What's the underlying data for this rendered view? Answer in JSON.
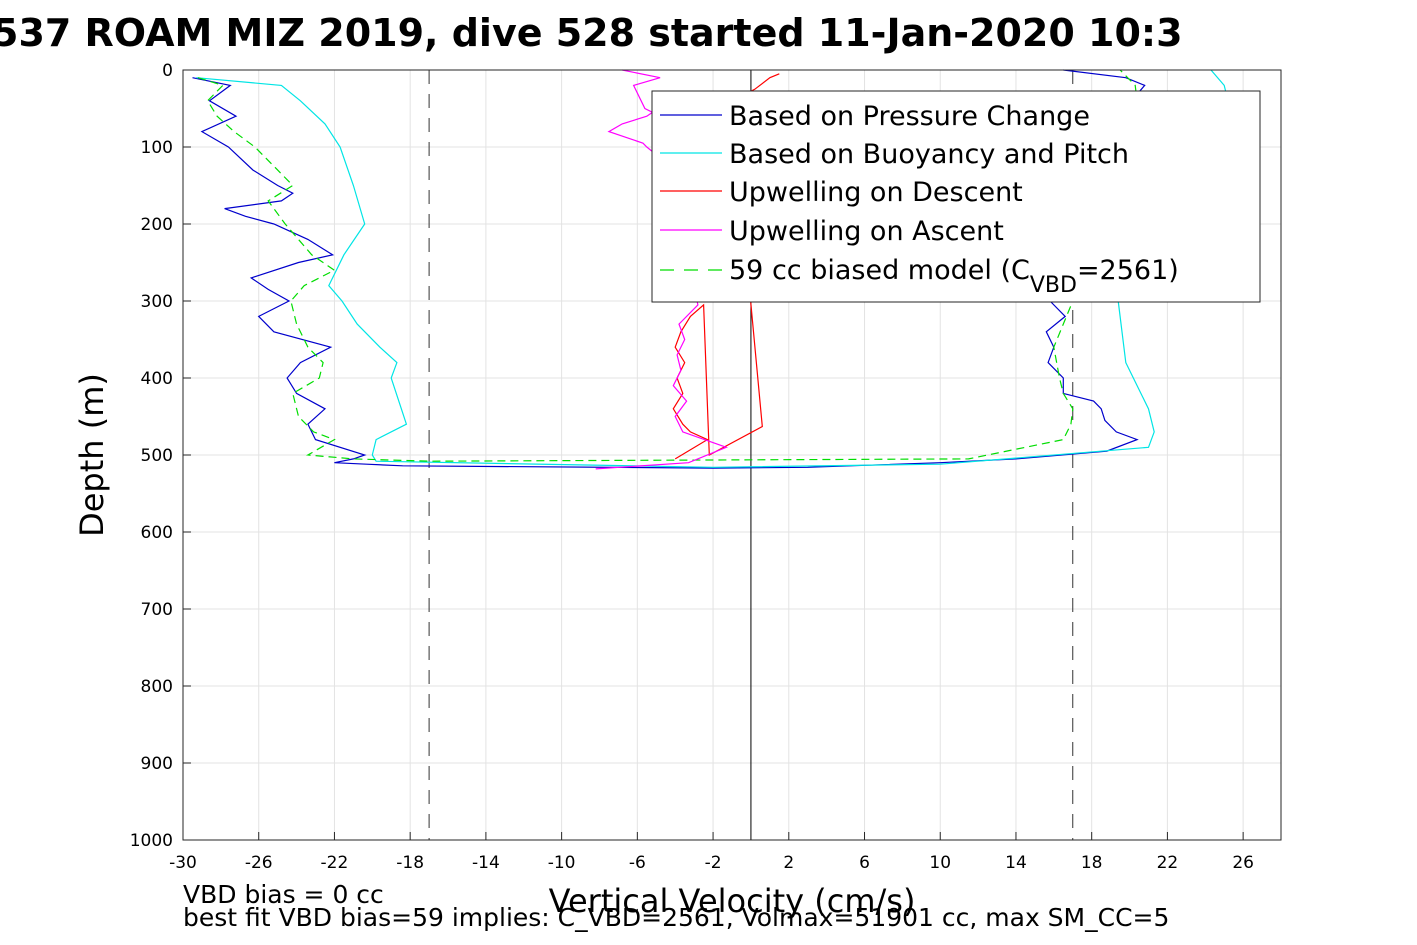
{
  "chart_data": {
    "type": "line",
    "title": "537 ROAM MIZ 2019, dive 528 started 11-Jan-2020 10:3",
    "xlabel": "Vertical Velocity (cm/s)",
    "ylabel": "Depth (m)",
    "xlim": [
      -30,
      28
    ],
    "ylim": [
      0,
      1000
    ],
    "y_reversed": true,
    "grid": true,
    "xticks": [
      -30,
      -26,
      -22,
      -18,
      -14,
      -10,
      -6,
      -2,
      2,
      6,
      10,
      14,
      18,
      22,
      26
    ],
    "yticks": [
      0,
      100,
      200,
      300,
      400,
      500,
      600,
      700,
      800,
      900,
      1000
    ],
    "legend_position": "top-right",
    "legend": [
      {
        "label": "Based on Pressure Change",
        "color": "#0000cc",
        "style": "solid"
      },
      {
        "label": "Based on Buoyancy and Pitch",
        "color": "#00e5e5",
        "style": "solid"
      },
      {
        "label": "Upwelling on Descent",
        "color": "#ff0000",
        "style": "solid"
      },
      {
        "label": "Upwelling on Ascent",
        "color": "#ff00ff",
        "style": "solid"
      },
      {
        "label_main": "59 cc biased model (C",
        "label_sub": "VBD",
        "label_end": "=2561)",
        "color": "#00dd00",
        "style": "dashed"
      }
    ],
    "reference_lines": {
      "zero_line_x": 0,
      "dashed_lines_x": [
        -17,
        17
      ]
    },
    "series": [
      {
        "color": "#0000cc",
        "x": [
          -29.5,
          -27.5,
          -28.6,
          -27.2,
          -29.0,
          -27.6,
          -26.3,
          -25.0,
          -24.2,
          -24.8,
          -27.8,
          -26.7,
          -25.2,
          -23.4,
          -22.1,
          -23.9,
          -26.4,
          -25.5,
          -24.4,
          -26.0,
          -25.2,
          -22.2,
          -23.8,
          -24.5,
          -24.0,
          -22.5,
          -23.4,
          -23.0,
          -20.4,
          -21.0,
          -22.0,
          -20.3,
          -18.4,
          -2.0,
          3.0,
          10.0,
          14.0,
          18.8,
          20.4,
          19.3,
          18.7,
          18.5,
          18.1,
          16.5,
          16.5,
          15.7,
          16.0,
          15.6,
          16.6,
          15.8,
          16.2,
          16.8,
          17.2,
          19.5,
          20.1,
          20.8,
          19.8,
          16.5
        ],
        "y": [
          10,
          20,
          40,
          60,
          80,
          100,
          130,
          150,
          160,
          170,
          180,
          190,
          200,
          220,
          240,
          250,
          270,
          285,
          300,
          320,
          340,
          360,
          380,
          400,
          420,
          440,
          460,
          480,
          500,
          505,
          510,
          512,
          514,
          517,
          516,
          510,
          505,
          495,
          480,
          470,
          455,
          440,
          430,
          420,
          400,
          380,
          360,
          340,
          320,
          300,
          260,
          200,
          100,
          60,
          40,
          20,
          10,
          0
        ]
      },
      {
        "color": "#00e5e5",
        "x": [
          -29.3,
          -24.8,
          -23.8,
          -22.5,
          -21.7,
          -21.0,
          -20.4,
          -21.5,
          -22.3,
          -21.6,
          -20.8,
          -19.6,
          -18.7,
          -19.0,
          -18.2,
          -19.8,
          -20.0,
          -19.8,
          -2.0,
          10.0,
          21.0,
          21.3,
          21.0,
          20.6,
          19.8,
          19.6,
          19.4,
          20.5,
          22.5,
          25.4,
          25.0,
          24.3
        ],
        "y": [
          10,
          20,
          40,
          70,
          100,
          150,
          200,
          240,
          280,
          300,
          330,
          360,
          380,
          400,
          460,
          480,
          500,
          508,
          516,
          512,
          490,
          470,
          440,
          420,
          380,
          340,
          300,
          200,
          100,
          60,
          20,
          0
        ]
      },
      {
        "color": "#00dd00",
        "dashed": true,
        "x": [
          -29.2,
          -27.9,
          -28.7,
          -28.2,
          -27.3,
          -26.2,
          -25.0,
          -24.2,
          -25.5,
          -24.6,
          -23.2,
          -22.0,
          -23.6,
          -24.3,
          -24.0,
          -23.4,
          -22.6,
          -22.8,
          -24.2,
          -23.9,
          -23.1,
          -22.0,
          -23.4,
          -21.0,
          -17.0,
          11.5,
          12.5,
          16.5,
          16.9,
          17.0,
          16.5,
          16.3,
          16.0,
          17.0,
          19.7,
          20.5,
          20.3,
          19.5
        ],
        "y": [
          10,
          20,
          40,
          60,
          80,
          100,
          130,
          150,
          170,
          200,
          240,
          260,
          280,
          300,
          330,
          360,
          380,
          400,
          420,
          450,
          470,
          480,
          500,
          505,
          508,
          505,
          500,
          480,
          460,
          440,
          420,
          400,
          360,
          300,
          100,
          60,
          20,
          0
        ]
      },
      {
        "color": "#ff0000",
        "x": [
          -4.0,
          -2.3,
          -3.2,
          -3.6,
          -4.1,
          -3.6,
          -3.9,
          -3.5,
          -4.0,
          -3.7,
          -3.2,
          -2.5,
          -2.2,
          0.6,
          -1.0,
          0.2,
          1.0,
          1.5
        ],
        "y": [
          505,
          480,
          470,
          460,
          440,
          420,
          400,
          380,
          360,
          340,
          320,
          305,
          500,
          463,
          40,
          25,
          10,
          5
        ]
      },
      {
        "color": "#ff00ff",
        "x": [
          -8.2,
          -3.3,
          -1.3,
          -3.6,
          -4.0,
          -3.4,
          -4.1,
          -3.7,
          -3.9,
          -3.5,
          -3.8,
          -2.8,
          -4.5,
          -5.5,
          -5.7,
          -6.3,
          -7.5,
          -6.8,
          -5.5,
          -5.2,
          -5.6,
          -6.2,
          -4.8,
          -6.8
        ],
        "y": [
          518,
          510,
          490,
          470,
          450,
          430,
          410,
          390,
          370,
          350,
          330,
          305,
          120,
          100,
          95,
          90,
          80,
          70,
          60,
          55,
          50,
          20,
          10,
          0
        ]
      }
    ]
  },
  "annotations": {
    "line1": "VBD bias = 0 cc",
    "line2": "best fit VBD bias=59 implies: C_VBD=2561, Volmax=51901 cc, max SM_CC=5"
  }
}
